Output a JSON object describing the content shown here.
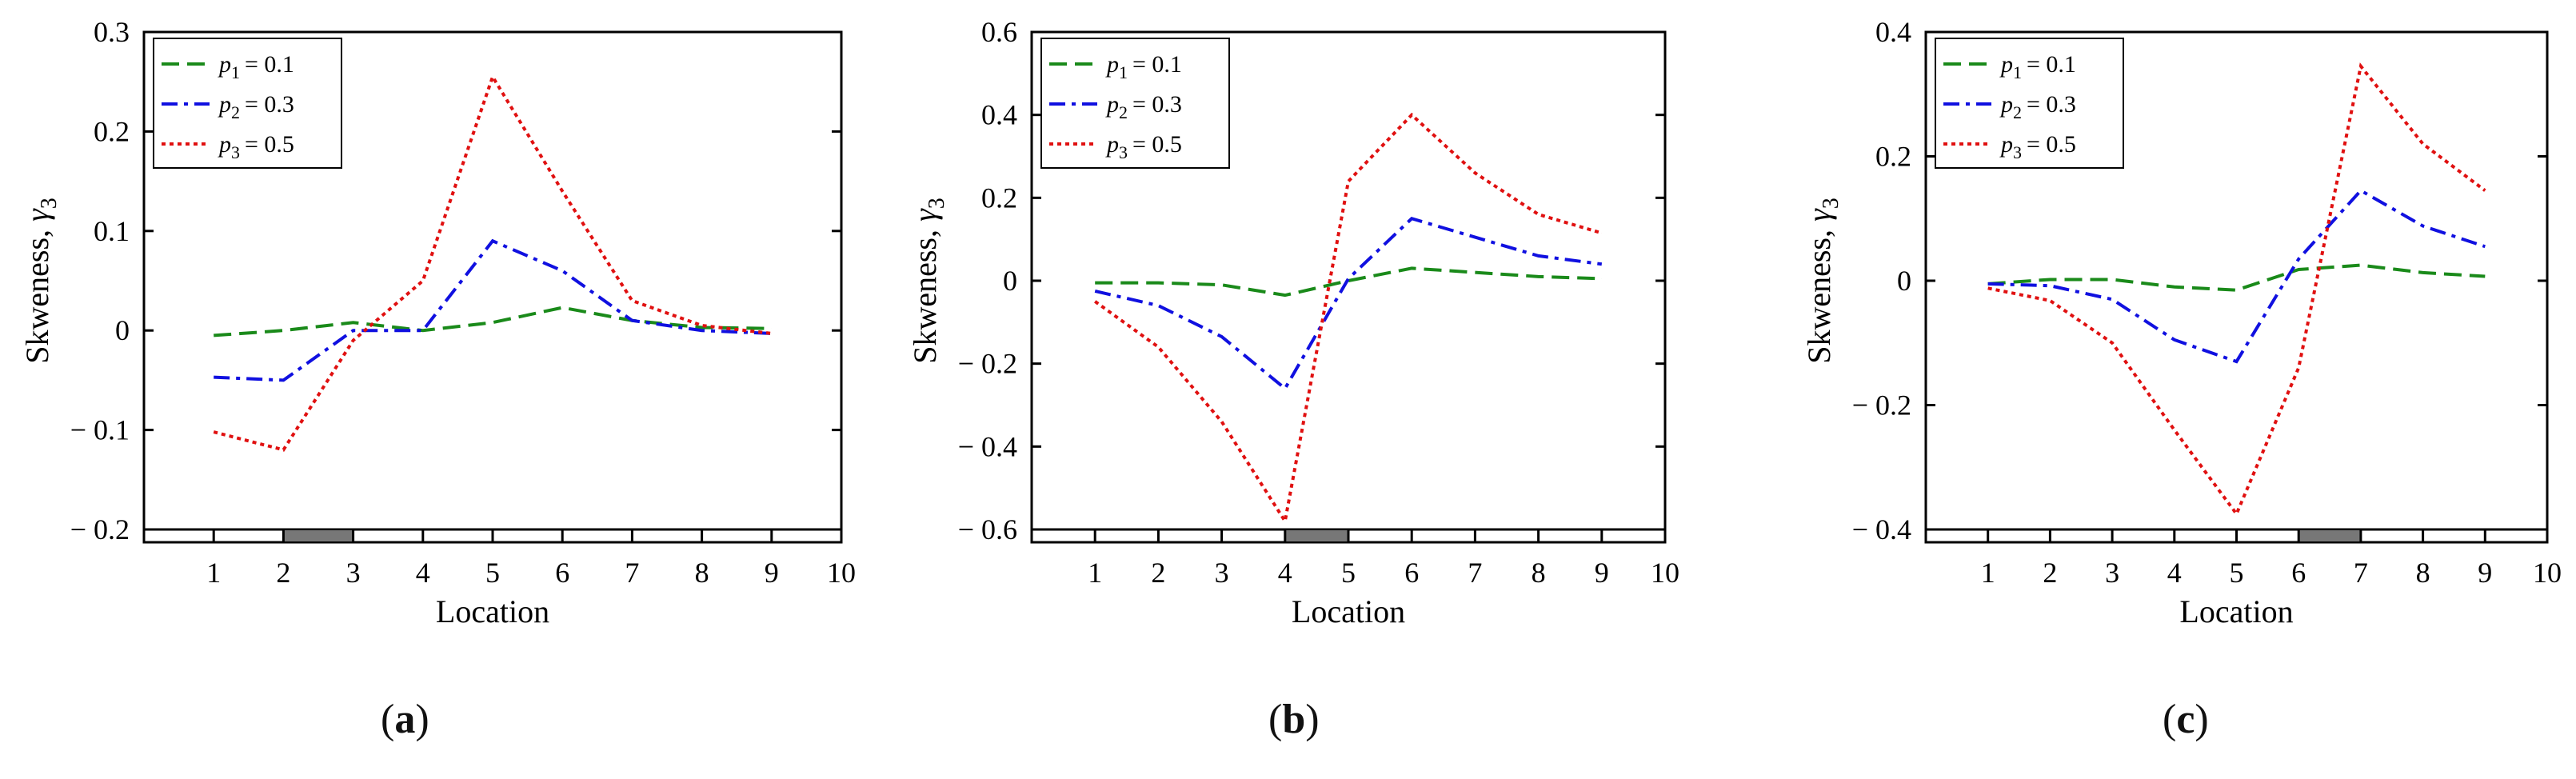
{
  "panel_labels": [
    "(a)",
    "(b)",
    "(c)"
  ],
  "colors": {
    "p1": "#1a8a1a",
    "p2": "#1010e0",
    "p3": "#e01010",
    "sensor_block": "#777777",
    "axis": "#000000"
  },
  "chart_data": [
    {
      "type": "line",
      "panel": "(a)",
      "xlabel": "Location",
      "ylabel": "Skweness, γ3",
      "x_ticks": [
        1,
        2,
        3,
        4,
        5,
        6,
        7,
        8,
        9,
        10
      ],
      "y_ticks": [
        0.3,
        0.2,
        0.1,
        0,
        -0.1,
        -0.2
      ],
      "y_tick_labels": [
        "0.3",
        "0.2",
        "0.1",
        "0",
        "− 0.1",
        "− 0.2"
      ],
      "xlim": [
        0,
        10
      ],
      "ylim": [
        -0.2,
        0.3
      ],
      "grid": false,
      "legend_position": "top-left",
      "highlight_interval": [
        2,
        3
      ],
      "x": [
        1,
        2,
        3,
        4,
        5,
        6,
        7,
        8,
        9
      ],
      "series": [
        {
          "name": "p1 = 0.1",
          "sub": "1",
          "value_text": "= 0.1",
          "values": [
            -0.005,
            0.0,
            0.008,
            0.0,
            0.008,
            0.023,
            0.01,
            0.003,
            0.002
          ]
        },
        {
          "name": "p2 = 0.3",
          "sub": "2",
          "value_text": "= 0.3",
          "values": [
            -0.047,
            -0.05,
            0.0,
            0.0,
            0.09,
            0.06,
            0.01,
            0.0,
            -0.003
          ]
        },
        {
          "name": "p3 = 0.5",
          "sub": "3",
          "value_text": "= 0.5",
          "values": [
            -0.102,
            -0.12,
            -0.01,
            0.05,
            0.255,
            0.14,
            0.03,
            0.005,
            -0.003
          ]
        }
      ]
    },
    {
      "type": "line",
      "panel": "(b)",
      "xlabel": "Location",
      "ylabel": "Skweness, γ3",
      "x_ticks": [
        1,
        2,
        3,
        4,
        5,
        6,
        7,
        8,
        9,
        10
      ],
      "y_ticks": [
        0.6,
        0.4,
        0.2,
        0,
        -0.2,
        -0.4,
        -0.6
      ],
      "y_tick_labels": [
        "0.6",
        "0.4",
        "0.2",
        "0",
        "− 0.2",
        "− 0.4",
        "− 0.6"
      ],
      "xlim": [
        0,
        10
      ],
      "ylim": [
        -0.6,
        0.6
      ],
      "grid": false,
      "legend_position": "top-left",
      "highlight_interval": [
        4,
        5
      ],
      "x": [
        1,
        2,
        3,
        4,
        5,
        6,
        7,
        8,
        9
      ],
      "series": [
        {
          "name": "p1 = 0.1",
          "sub": "1",
          "value_text": "= 0.1",
          "values": [
            -0.005,
            -0.005,
            -0.01,
            -0.035,
            0.0,
            0.03,
            0.02,
            0.01,
            0.005
          ]
        },
        {
          "name": "p2 = 0.3",
          "sub": "2",
          "value_text": "= 0.3",
          "values": [
            -0.025,
            -0.06,
            -0.135,
            -0.26,
            0.005,
            0.15,
            0.105,
            0.06,
            0.04
          ]
        },
        {
          "name": "p3 = 0.5",
          "sub": "3",
          "value_text": "= 0.5",
          "values": [
            -0.05,
            -0.16,
            -0.34,
            -0.58,
            0.24,
            0.4,
            0.26,
            0.16,
            0.115
          ]
        }
      ]
    },
    {
      "type": "line",
      "panel": "(c)",
      "xlabel": "Location",
      "ylabel": "Skweness, γ3",
      "x_ticks": [
        1,
        2,
        3,
        4,
        5,
        6,
        7,
        8,
        9,
        10
      ],
      "y_ticks": [
        0.4,
        0.2,
        0,
        -0.2,
        -0.4
      ],
      "y_tick_labels": [
        "0.4",
        "0.2",
        "0",
        "− 0.2",
        "− 0.4"
      ],
      "xlim": [
        0,
        10
      ],
      "ylim": [
        -0.4,
        0.4
      ],
      "grid": false,
      "legend_position": "top-left",
      "highlight_interval": [
        6,
        7
      ],
      "x": [
        1,
        2,
        3,
        4,
        5,
        6,
        7,
        8,
        9
      ],
      "series": [
        {
          "name": "p1 = 0.1",
          "sub": "1",
          "value_text": "= 0.1",
          "values": [
            -0.005,
            0.002,
            0.002,
            -0.01,
            -0.015,
            0.018,
            0.025,
            0.013,
            0.007
          ]
        },
        {
          "name": "p2 = 0.3",
          "sub": "2",
          "value_text": "= 0.3",
          "values": [
            -0.005,
            -0.008,
            -0.03,
            -0.095,
            -0.13,
            0.035,
            0.145,
            0.088,
            0.055
          ]
        },
        {
          "name": "p3 = 0.5",
          "sub": "3",
          "value_text": "= 0.5",
          "values": [
            -0.012,
            -0.032,
            -0.1,
            -0.24,
            -0.375,
            -0.14,
            0.345,
            0.22,
            0.145
          ]
        }
      ]
    }
  ]
}
